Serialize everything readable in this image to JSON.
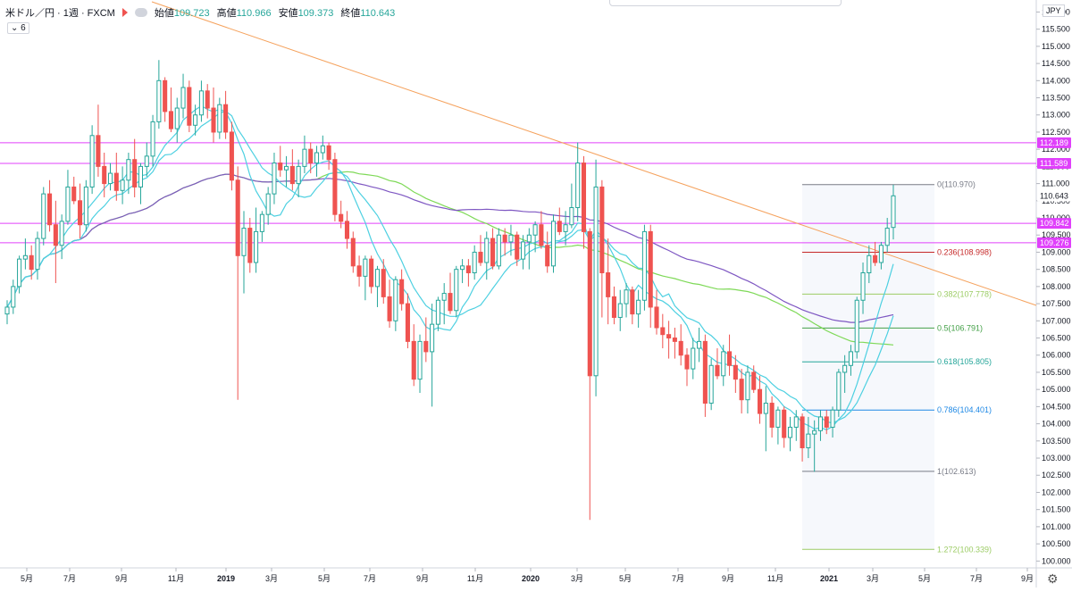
{
  "header": {
    "symbol": "米ドル／円 · 1週 · FXCM",
    "open_label": "始値",
    "open": "109.723",
    "high_label": "高値",
    "high": "110.966",
    "low_label": "安値",
    "low": "109.373",
    "close_label": "終値",
    "close": "110.643",
    "sub_indicator": "6",
    "currency": "JPY"
  },
  "colors": {
    "up": "#26a69a",
    "down": "#ef5350",
    "ma_green": "#7ed957",
    "ma_purple": "#7e57c2",
    "ma_cyan": "#4dd0e1",
    "trendline": "#f5a25d",
    "hline": "#e040fb"
  },
  "chart_data": {
    "type": "candlestick",
    "ylim": [
      100.0,
      116.0
    ],
    "y_ticks": [
      "116.000",
      "115.500",
      "115.000",
      "114.500",
      "114.000",
      "113.500",
      "113.000",
      "112.500",
      "112.000",
      "111.500",
      "111.000",
      "110.500",
      "110.000",
      "109.500",
      "109.000",
      "108.500",
      "108.000",
      "107.500",
      "107.000",
      "106.500",
      "106.000",
      "105.500",
      "105.000",
      "104.500",
      "104.000",
      "103.500",
      "103.000",
      "102.500",
      "102.000",
      "101.500",
      "101.000",
      "100.500",
      "100.000"
    ],
    "x_ticks": [
      "5月",
      "7月",
      "9月",
      "11月",
      "2019",
      "3月",
      "5月",
      "7月",
      "9月",
      "11月",
      "2020",
      "3月",
      "5月",
      "7月",
      "9月",
      "11月",
      "2021",
      "3月",
      "5月",
      "7月",
      "9月"
    ],
    "price_labels": [
      {
        "text": "112.189",
        "value": 112.189
      },
      {
        "text": "111.589",
        "value": 111.589
      },
      {
        "text": "110.643",
        "value": 110.643
      },
      {
        "text": "109.842",
        "value": 109.842
      },
      {
        "text": "109.276",
        "value": 109.276
      }
    ],
    "horizontal_lines": [
      112.189,
      111.589,
      109.842,
      109.276
    ],
    "fibonacci": [
      {
        "label": "0(110.970)",
        "value": 110.97,
        "color": "#787b86"
      },
      {
        "label": "0.236(108.998)",
        "value": 108.998,
        "color": "#c62828"
      },
      {
        "label": "0.382(107.778)",
        "value": 107.778,
        "color": "#9ccc65"
      },
      {
        "label": "0.5(106.791)",
        "value": 106.791,
        "color": "#43a047"
      },
      {
        "label": "0.618(105.805)",
        "value": 105.805,
        "color": "#26a69a"
      },
      {
        "label": "0.786(104.401)",
        "value": 104.401,
        "color": "#1e88e5"
      },
      {
        "label": "1(102.613)",
        "value": 102.613,
        "color": "#787b86"
      },
      {
        "label": "1.272(100.339)",
        "value": 100.339,
        "color": "#9ccc65"
      }
    ],
    "candles": [
      [
        107.2,
        107.6,
        106.9,
        107.4
      ],
      [
        107.4,
        108.2,
        107.2,
        108.0
      ],
      [
        108.0,
        108.9,
        107.8,
        108.8
      ],
      [
        108.8,
        109.4,
        108.5,
        108.9
      ],
      [
        108.9,
        109.2,
        108.2,
        108.5
      ],
      [
        108.5,
        109.6,
        108.2,
        109.4
      ],
      [
        109.4,
        110.9,
        109.2,
        110.7
      ],
      [
        110.7,
        111.1,
        109.6,
        109.8
      ],
      [
        109.8,
        110.5,
        108.1,
        109.2
      ],
      [
        109.2,
        110.1,
        108.8,
        109.9
      ],
      [
        109.9,
        111.4,
        109.8,
        110.9
      ],
      [
        110.9,
        111.2,
        110.4,
        110.5
      ],
      [
        110.5,
        111.0,
        109.4,
        109.8
      ],
      [
        109.8,
        111.1,
        109.6,
        110.9
      ],
      [
        110.9,
        112.7,
        110.7,
        112.4
      ],
      [
        112.4,
        113.3,
        111.2,
        111.5
      ],
      [
        111.5,
        111.9,
        110.6,
        111.0
      ],
      [
        111.0,
        111.6,
        110.8,
        111.3
      ],
      [
        111.3,
        111.9,
        110.5,
        110.8
      ],
      [
        110.8,
        111.5,
        110.4,
        111.1
      ],
      [
        111.1,
        111.9,
        110.7,
        111.7
      ],
      [
        111.7,
        112.3,
        110.6,
        110.9
      ],
      [
        110.9,
        111.6,
        110.4,
        111.5
      ],
      [
        111.5,
        112.2,
        111.2,
        111.8
      ],
      [
        111.8,
        113.0,
        111.5,
        112.8
      ],
      [
        112.8,
        114.6,
        112.6,
        114.0
      ],
      [
        114.0,
        114.1,
        112.8,
        113.1
      ],
      [
        113.1,
        113.8,
        112.5,
        112.6
      ],
      [
        112.6,
        113.5,
        112.2,
        113.2
      ],
      [
        113.2,
        114.2,
        112.9,
        113.8
      ],
      [
        113.8,
        114.0,
        112.5,
        112.7
      ],
      [
        112.7,
        113.3,
        112.4,
        113.0
      ],
      [
        113.0,
        114.0,
        112.8,
        113.7
      ],
      [
        113.7,
        113.9,
        112.9,
        113.2
      ],
      [
        113.2,
        113.8,
        112.2,
        112.5
      ],
      [
        112.5,
        113.5,
        112.3,
        113.3
      ],
      [
        113.3,
        113.7,
        112.3,
        112.5
      ],
      [
        112.5,
        112.8,
        110.8,
        111.1
      ],
      [
        111.1,
        111.5,
        104.7,
        108.9
      ],
      [
        108.9,
        110.2,
        107.8,
        109.7
      ],
      [
        109.7,
        110.0,
        108.4,
        108.7
      ],
      [
        108.7,
        110.3,
        108.4,
        109.6
      ],
      [
        109.6,
        110.2,
        109.3,
        110.1
      ],
      [
        110.1,
        110.9,
        109.8,
        110.7
      ],
      [
        110.7,
        111.9,
        110.4,
        111.6
      ],
      [
        111.6,
        112.1,
        111.2,
        111.4
      ],
      [
        111.4,
        111.8,
        110.9,
        111.5
      ],
      [
        111.5,
        112.0,
        110.8,
        111.0
      ],
      [
        111.0,
        111.7,
        110.6,
        111.5
      ],
      [
        111.5,
        112.4,
        111.3,
        112.0
      ],
      [
        112.0,
        112.2,
        111.3,
        111.6
      ],
      [
        111.6,
        112.1,
        111.2,
        111.9
      ],
      [
        111.9,
        112.4,
        111.7,
        112.1
      ],
      [
        112.1,
        112.2,
        111.4,
        111.7
      ],
      [
        111.7,
        111.9,
        109.9,
        110.1
      ],
      [
        110.1,
        110.5,
        109.7,
        109.9
      ],
      [
        109.9,
        110.2,
        109.1,
        109.4
      ],
      [
        109.4,
        109.6,
        108.4,
        108.6
      ],
      [
        108.6,
        108.9,
        108.0,
        108.3
      ],
      [
        108.3,
        108.9,
        107.6,
        108.8
      ],
      [
        108.8,
        108.9,
        107.8,
        108.0
      ],
      [
        108.0,
        108.6,
        107.4,
        108.5
      ],
      [
        108.5,
        108.8,
        107.5,
        107.7
      ],
      [
        107.7,
        108.2,
        106.8,
        107.0
      ],
      [
        107.0,
        108.3,
        106.7,
        108.2
      ],
      [
        108.2,
        108.5,
        107.3,
        107.5
      ],
      [
        107.5,
        107.8,
        106.2,
        106.4
      ],
      [
        106.4,
        106.9,
        105.1,
        105.3
      ],
      [
        105.3,
        106.6,
        104.9,
        106.4
      ],
      [
        106.4,
        107.1,
        105.8,
        106.1
      ],
      [
        106.1,
        107.5,
        104.5,
        106.9
      ],
      [
        106.9,
        107.7,
        106.7,
        107.6
      ],
      [
        107.6,
        108.1,
        106.9,
        107.8
      ],
      [
        107.8,
        108.4,
        107.2,
        107.3
      ],
      [
        107.3,
        108.6,
        107.1,
        108.5
      ],
      [
        108.5,
        108.8,
        108.1,
        108.6
      ],
      [
        108.6,
        108.8,
        108.0,
        108.4
      ],
      [
        108.4,
        109.2,
        108.2,
        109.0
      ],
      [
        109.0,
        109.5,
        108.6,
        108.7
      ],
      [
        108.7,
        109.6,
        108.2,
        109.4
      ],
      [
        109.4,
        109.7,
        108.5,
        108.6
      ],
      [
        108.6,
        109.7,
        108.5,
        109.5
      ],
      [
        109.5,
        109.7,
        108.9,
        109.3
      ],
      [
        109.3,
        109.8,
        108.9,
        109.5
      ],
      [
        109.5,
        109.6,
        108.6,
        108.8
      ],
      [
        108.8,
        109.5,
        108.5,
        109.3
      ],
      [
        109.3,
        109.7,
        108.5,
        109.5
      ],
      [
        109.5,
        109.9,
        109.0,
        109.8
      ],
      [
        109.8,
        110.2,
        109.1,
        109.2
      ],
      [
        109.2,
        109.6,
        108.4,
        108.6
      ],
      [
        108.6,
        110.1,
        108.4,
        109.9
      ],
      [
        109.9,
        110.3,
        109.5,
        109.6
      ],
      [
        109.6,
        110.2,
        109.2,
        109.8
      ],
      [
        109.8,
        111.0,
        109.7,
        110.3
      ],
      [
        110.3,
        112.2,
        109.9,
        111.6
      ],
      [
        111.6,
        111.8,
        109.1,
        109.6
      ],
      [
        109.6,
        109.7,
        101.2,
        105.4
      ],
      [
        105.4,
        111.7,
        104.8,
        110.9
      ],
      [
        110.9,
        111.1,
        107.1,
        108.4
      ],
      [
        108.4,
        109.4,
        106.9,
        107.7
      ],
      [
        107.7,
        108.0,
        106.9,
        107.1
      ],
      [
        107.1,
        107.9,
        106.7,
        107.5
      ],
      [
        107.5,
        108.1,
        107.1,
        107.9
      ],
      [
        107.9,
        108.0,
        106.9,
        107.2
      ],
      [
        107.2,
        107.9,
        106.8,
        107.6
      ],
      [
        107.6,
        109.8,
        107.3,
        109.6
      ],
      [
        109.6,
        109.8,
        106.8,
        107.4
      ],
      [
        107.4,
        107.9,
        106.6,
        106.8
      ],
      [
        106.8,
        107.2,
        106.2,
        106.6
      ],
      [
        106.6,
        107.0,
        105.9,
        106.5
      ],
      [
        106.5,
        106.8,
        105.9,
        106.4
      ],
      [
        106.4,
        106.9,
        105.7,
        106.0
      ],
      [
        106.0,
        106.2,
        105.1,
        105.6
      ],
      [
        105.6,
        106.5,
        105.3,
        106.2
      ],
      [
        106.2,
        106.8,
        105.8,
        106.4
      ],
      [
        106.4,
        106.6,
        104.2,
        104.6
      ],
      [
        104.6,
        105.9,
        104.4,
        105.7
      ],
      [
        105.7,
        106.2,
        105.3,
        105.4
      ],
      [
        105.4,
        106.3,
        105.1,
        106.1
      ],
      [
        106.1,
        106.6,
        105.4,
        105.7
      ],
      [
        105.7,
        106.0,
        104.9,
        105.3
      ],
      [
        105.3,
        105.6,
        104.3,
        104.7
      ],
      [
        104.7,
        105.7,
        104.3,
        105.5
      ],
      [
        105.5,
        105.7,
        104.9,
        105.0
      ],
      [
        105.0,
        105.4,
        104.0,
        104.3
      ],
      [
        104.3,
        105.1,
        103.2,
        104.6
      ],
      [
        104.6,
        104.8,
        103.6,
        103.9
      ],
      [
        103.9,
        104.5,
        103.4,
        104.4
      ],
      [
        104.4,
        104.5,
        103.3,
        103.6
      ],
      [
        103.6,
        104.2,
        103.2,
        103.9
      ],
      [
        103.9,
        104.4,
        103.5,
        104.2
      ],
      [
        104.2,
        104.3,
        102.9,
        103.3
      ],
      [
        103.3,
        104.2,
        103.0,
        103.7
      ],
      [
        103.7,
        104.1,
        102.6,
        103.8
      ],
      [
        103.8,
        104.4,
        103.5,
        104.2
      ],
      [
        104.2,
        104.4,
        103.7,
        103.9
      ],
      [
        103.9,
        104.5,
        103.6,
        104.4
      ],
      [
        104.4,
        105.6,
        104.2,
        105.5
      ],
      [
        105.5,
        106.0,
        104.9,
        105.7
      ],
      [
        105.7,
        106.3,
        105.4,
        106.1
      ],
      [
        106.1,
        107.7,
        105.9,
        107.6
      ],
      [
        107.6,
        108.7,
        107.2,
        108.4
      ],
      [
        108.4,
        109.2,
        108.1,
        108.9
      ],
      [
        108.9,
        109.3,
        108.6,
        108.7
      ],
      [
        108.7,
        109.3,
        108.5,
        109.2
      ],
      [
        109.2,
        110.0,
        109.0,
        109.7
      ],
      [
        109.723,
        110.966,
        109.373,
        110.643
      ]
    ]
  }
}
